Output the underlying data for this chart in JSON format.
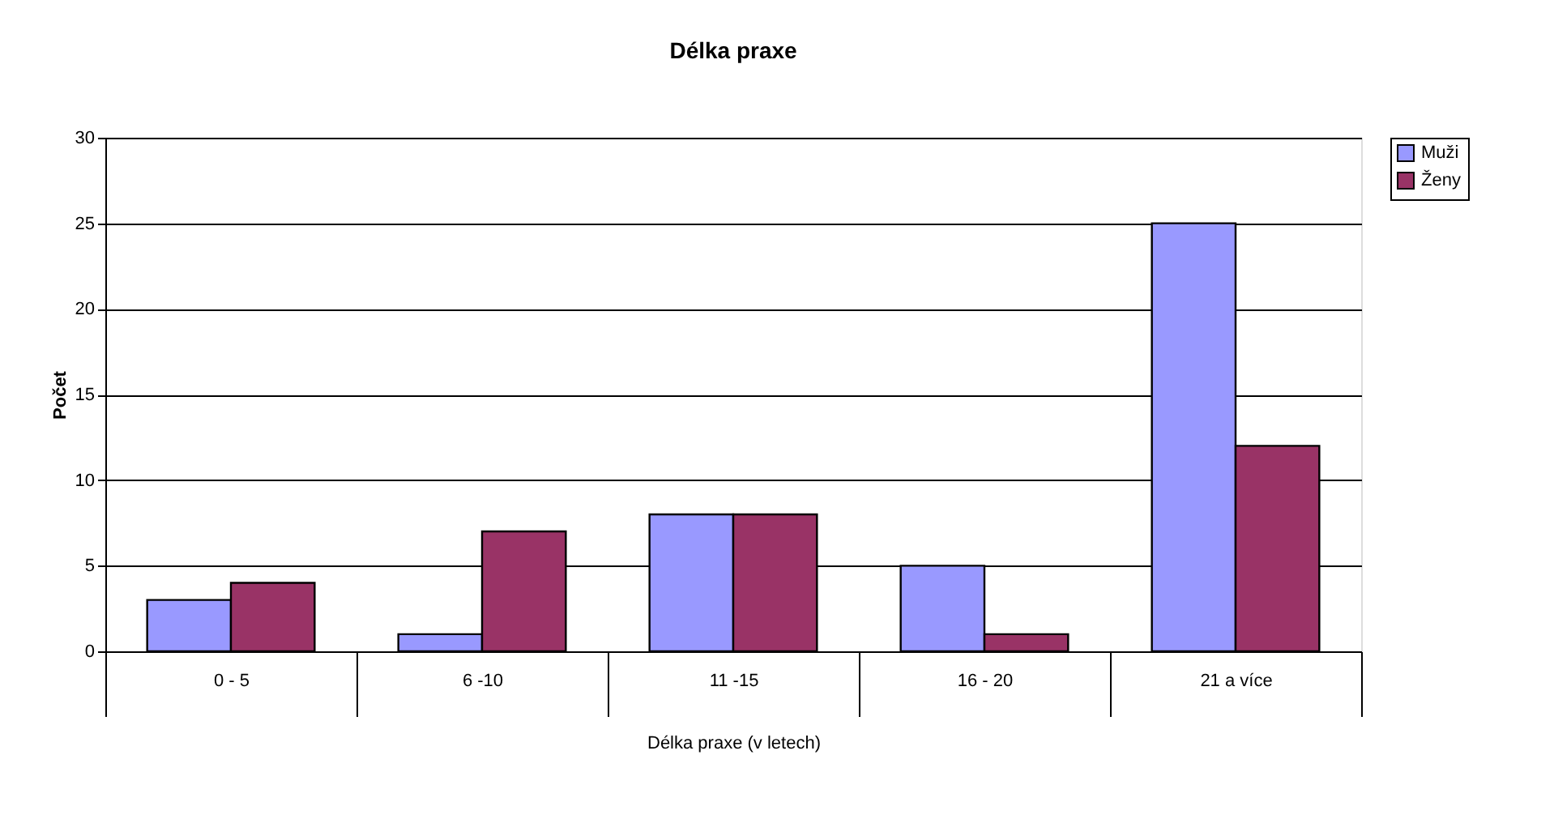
{
  "chart_data": {
    "type": "bar",
    "title": "Délka praxe",
    "xlabel": "Délka praxe (v letech)",
    "ylabel": "Počet",
    "categories": [
      "0 - 5",
      "6 -10",
      "11 -15",
      "16 - 20",
      "21 a více"
    ],
    "series": [
      {
        "name": "Muži",
        "color": "#9999ff",
        "values": [
          3,
          1,
          8,
          5,
          25
        ]
      },
      {
        "name": "Ženy",
        "color": "#993366",
        "values": [
          4,
          7,
          8,
          1,
          12
        ]
      }
    ],
    "ylim": [
      0,
      30
    ],
    "yticks": [
      0,
      5,
      10,
      15,
      20,
      25,
      30
    ],
    "grid": "y",
    "legend": "right"
  }
}
